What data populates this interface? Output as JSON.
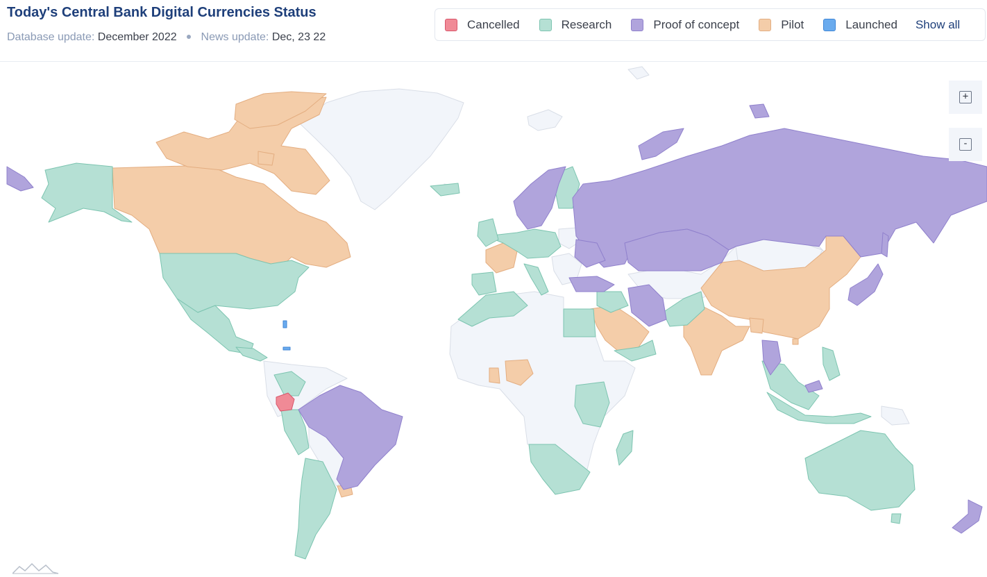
{
  "header": {
    "title": "Today's Central Bank Digital Currencies Status",
    "db_label": "Database update:",
    "db_value": "December 2022",
    "news_label": "News update:",
    "news_value": "Dec, 23 22"
  },
  "legend": {
    "items": [
      {
        "label": "Cancelled",
        "color": "#f08a96",
        "border": "#d8556a"
      },
      {
        "label": "Research",
        "color": "#b5e0d4",
        "border": "#7cc4b0"
      },
      {
        "label": "Proof of concept",
        "color": "#b0a4dc",
        "border": "#8f80cc"
      },
      {
        "label": "Pilot",
        "color": "#f4cda9",
        "border": "#e3ad80"
      },
      {
        "label": "Launched",
        "color": "#6aabee",
        "border": "#3f86d6"
      }
    ],
    "show_all": "Show all"
  },
  "zoom": {
    "in": "+",
    "out": "-"
  },
  "colors": {
    "none": "#f2f5fa",
    "ocean": "#ffffff",
    "border": "#d9dee7"
  },
  "icons": {
    "zoom_in": "plus-icon",
    "zoom_out": "minus-icon",
    "logo": "amcharts-logo-icon"
  }
}
